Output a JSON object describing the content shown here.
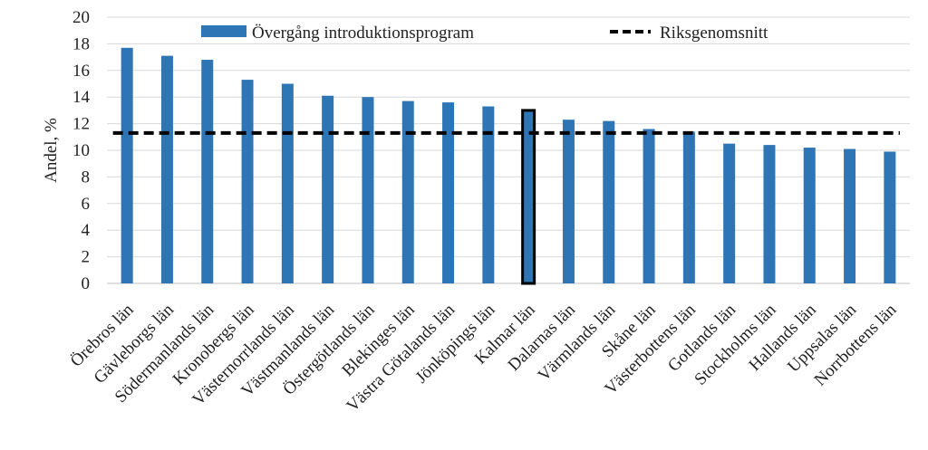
{
  "chart_data": {
    "type": "bar",
    "title": "",
    "xlabel": "",
    "ylabel": "Andel, %",
    "ylim": [
      0,
      20
    ],
    "yticks": [
      "0",
      "2",
      "4",
      "6",
      "8",
      "10",
      "12",
      "14",
      "16",
      "18",
      "20"
    ],
    "categories": [
      "Örebros län",
      "Gävleborgs län",
      "Södermanlands län",
      "Kronobergs län",
      "Västernorrlands län",
      "Västmanlands län",
      "Östergötlands län",
      "Blekinges län",
      "Västra Götalands län",
      "Jönköpings län",
      "Kalmar län",
      "Dalarnas län",
      "Värmlands län",
      "Skåne län",
      "Västerbottens län",
      "Gotlands län",
      "Stockholms län",
      "Hallands län",
      "Uppsalas län",
      "Norrbottens län"
    ],
    "series": [
      {
        "name": "Övergång introduktionsprogram",
        "color": "#2E75B6",
        "values": [
          17.7,
          17.1,
          16.8,
          15.3,
          15.0,
          14.1,
          14.0,
          13.7,
          13.6,
          13.3,
          13.0,
          12.3,
          12.2,
          11.6,
          11.4,
          10.5,
          10.4,
          10.2,
          10.1,
          9.9
        ]
      }
    ],
    "highlighted_category": "Kalmar län",
    "reference_line": {
      "name": "Riksgenomsnitt",
      "value": 11.3,
      "style": "dashed",
      "color": "#000000"
    },
    "grid": true,
    "legend_position": "top"
  }
}
